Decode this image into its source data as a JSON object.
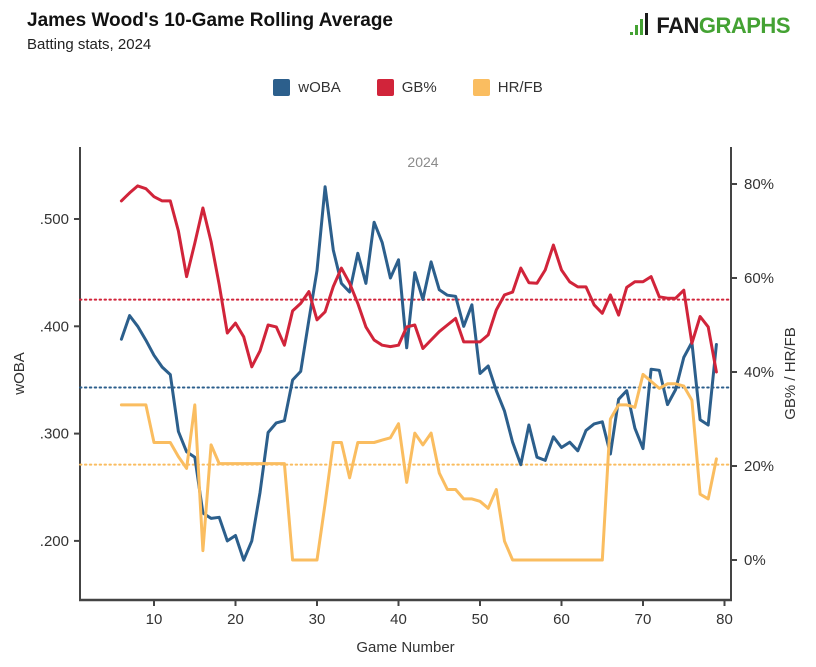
{
  "header": {
    "title": "James Wood's 10-Game Rolling Average",
    "subtitle": "Batting stats, 2024",
    "logo": {
      "fan": "FAN",
      "graphs": "GRAPHS",
      "green": "#44a233",
      "dark": "#1a1a1a"
    }
  },
  "legend": [
    {
      "label": "wOBA",
      "color": "#2c5f8c"
    },
    {
      "label": "GB%",
      "color": "#d1243a"
    },
    {
      "label": "HR/FB",
      "color": "#fabd60"
    }
  ],
  "chart_data": {
    "type": "line",
    "annotation": "2024",
    "xlabel": "Game Number",
    "ylabel_left": "wOBA",
    "ylabel_right": "GB% / HR/FB",
    "x_ticks": [
      10,
      20,
      30,
      40,
      50,
      60,
      70,
      80
    ],
    "left_ticks": [
      {
        "label": ".500",
        "value": 0.5
      },
      {
        "label": ".400",
        "value": 0.4
      },
      {
        "label": ".300",
        "value": 0.3
      },
      {
        "label": ".200",
        "value": 0.2
      }
    ],
    "right_ticks": [
      {
        "label": "80%",
        "value": 80
      },
      {
        "label": "60%",
        "value": 60
      },
      {
        "label": "40%",
        "value": 40
      },
      {
        "label": "20%",
        "value": 20
      },
      {
        "label": "0%",
        "value": 0
      }
    ],
    "left_axis_range": [
      0.145,
      0.567
    ],
    "right_axis_range": [
      -8.5,
      88
    ],
    "x_range": [
      1,
      80
    ],
    "grid": "off",
    "legend_position": "top-center",
    "x": [
      6,
      7,
      8,
      9,
      10,
      11,
      12,
      13,
      14,
      15,
      16,
      17,
      18,
      19,
      20,
      21,
      22,
      23,
      24,
      25,
      26,
      27,
      28,
      29,
      30,
      31,
      32,
      33,
      34,
      35,
      36,
      37,
      38,
      39,
      40,
      41,
      42,
      43,
      44,
      45,
      46,
      47,
      48,
      49,
      50,
      51,
      52,
      53,
      54,
      55,
      56,
      57,
      58,
      59,
      60,
      61,
      62,
      63,
      64,
      65,
      66,
      67,
      68,
      69,
      70,
      71,
      72,
      73,
      74,
      75,
      76,
      77,
      78,
      79
    ],
    "series": [
      {
        "name": "wOBA",
        "axis": "left",
        "color": "#2c5f8c",
        "average": 0.343,
        "values": [
          0.388,
          0.41,
          0.4,
          0.387,
          0.373,
          0.362,
          0.355,
          0.302,
          0.283,
          0.278,
          0.226,
          0.221,
          0.222,
          0.2,
          0.205,
          0.182,
          0.2,
          0.245,
          0.301,
          0.31,
          0.312,
          0.35,
          0.358,
          0.406,
          0.452,
          0.53,
          0.471,
          0.44,
          0.432,
          0.468,
          0.44,
          0.497,
          0.478,
          0.445,
          0.462,
          0.38,
          0.45,
          0.425,
          0.46,
          0.434,
          0.429,
          0.428,
          0.4,
          0.42,
          0.356,
          0.363,
          0.34,
          0.321,
          0.292,
          0.271,
          0.308,
          0.278,
          0.275,
          0.297,
          0.287,
          0.292,
          0.284,
          0.303,
          0.309,
          0.311,
          0.281,
          0.332,
          0.34,
          0.305,
          0.286,
          0.36,
          0.359,
          0.327,
          0.341,
          0.371,
          0.385,
          0.313,
          0.308,
          0.383
        ]
      },
      {
        "name": "GB%",
        "axis": "right",
        "color": "#d1243a",
        "average": 55.4,
        "values": [
          76.4,
          78.1,
          79.6,
          79.0,
          77.3,
          76.4,
          76.4,
          70.0,
          60.3,
          67.4,
          74.9,
          67.7,
          58.6,
          48.3,
          50.4,
          47.5,
          41.1,
          44.5,
          50.0,
          49.6,
          45.7,
          53.0,
          54.6,
          57.1,
          51.1,
          52.8,
          58.2,
          62.1,
          58.9,
          54.6,
          49.6,
          46.8,
          45.7,
          45.4,
          45.7,
          49.6,
          50.0,
          45.0,
          46.8,
          48.6,
          50.0,
          51.4,
          46.4,
          46.4,
          46.4,
          47.9,
          53.2,
          56.4,
          57.0,
          62.1,
          59.0,
          58.9,
          61.7,
          67.0,
          61.7,
          59.2,
          58.1,
          58.1,
          54.3,
          52.5,
          56.4,
          52.1,
          58.0,
          59.2,
          59.2,
          60.3,
          56.0,
          55.7,
          55.7,
          57.4,
          46.1,
          51.8,
          49.6,
          40.0
        ]
      },
      {
        "name": "HR/FB",
        "axis": "right",
        "color": "#fabd60",
        "average": 20.3,
        "values": [
          33,
          33,
          33,
          33,
          25,
          25,
          25,
          22,
          19.5,
          33,
          2,
          24.5,
          20.5,
          20.5,
          20.5,
          20.5,
          20.5,
          20.5,
          20.5,
          20.5,
          20.5,
          0,
          0,
          0,
          0,
          12,
          25,
          25,
          17.5,
          25,
          25,
          25,
          25.5,
          26,
          29,
          16.5,
          27,
          24.5,
          27,
          18.5,
          15,
          15,
          13,
          13,
          12.5,
          11,
          15,
          4,
          0,
          0,
          0,
          0,
          0,
          0,
          0,
          0,
          0,
          0,
          0,
          0,
          30,
          33,
          33,
          32.5,
          39.5,
          38,
          36.5,
          37.5,
          37.5,
          37,
          34,
          14,
          13,
          21.5
        ]
      }
    ]
  }
}
